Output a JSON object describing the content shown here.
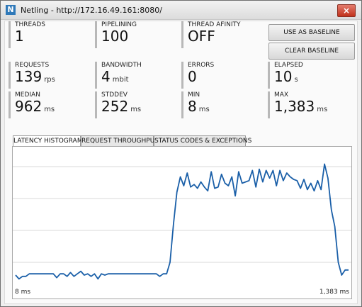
{
  "window": {
    "app_icon_letter": "N",
    "title": "Netling - http://172.16.49.161:8080/",
    "close_glyph": "×"
  },
  "stats": {
    "threads": {
      "label": "Threads",
      "value": "1",
      "unit": ""
    },
    "pipelining": {
      "label": "Pipelining",
      "value": "100",
      "unit": ""
    },
    "thread_affinity": {
      "label": "Thread Afinity",
      "value": "OFF",
      "unit": ""
    },
    "requests": {
      "label": "Requests",
      "value": "139",
      "unit": "rps"
    },
    "bandwidth": {
      "label": "Bandwidth",
      "value": "4",
      "unit": "mbit"
    },
    "errors": {
      "label": "Errors",
      "value": "0",
      "unit": ""
    },
    "elapsed": {
      "label": "Elapsed",
      "value": "10",
      "unit": "s"
    },
    "median": {
      "label": "Median",
      "value": "962",
      "unit": "ms"
    },
    "stddev": {
      "label": "Stddev",
      "value": "252",
      "unit": "ms"
    },
    "min": {
      "label": "Min",
      "value": "8",
      "unit": "ms"
    },
    "max": {
      "label": "Max",
      "value": "1,383",
      "unit": "ms"
    }
  },
  "buttons": {
    "use_baseline": "Use as baseline",
    "clear_baseline": "Clear baseline"
  },
  "tabs": [
    {
      "label": "Latency Histogram",
      "active": true
    },
    {
      "label": "Request Throughput",
      "active": false
    },
    {
      "label": "Status Codes & Exceptions",
      "active": false
    }
  ],
  "chart": {
    "x_min_label": "8 ms",
    "x_max_label": "1,383 ms",
    "line_color": "#1a5fa8",
    "gridline_count": 4
  },
  "chart_data": {
    "type": "line",
    "x_range": [
      "8 ms",
      "1,383 ms"
    ],
    "ylim": [
      0,
      100
    ],
    "grid": true,
    "series": [
      {
        "values": [
          5,
          2,
          4,
          4,
          6,
          6,
          6,
          6,
          6,
          6,
          6,
          6,
          3,
          6,
          6,
          4,
          7,
          4,
          6,
          8,
          5,
          6,
          4,
          6,
          2,
          6,
          5,
          6,
          6,
          6,
          6,
          6,
          6,
          6,
          6,
          6,
          6,
          6,
          6,
          6,
          6,
          6,
          4,
          6,
          6,
          15,
          45,
          70,
          82,
          75,
          85,
          74,
          76,
          73,
          78,
          74,
          71,
          86,
          73,
          74,
          84,
          77,
          75,
          82,
          67,
          86,
          77,
          78,
          79,
          87,
          74,
          88,
          78,
          87,
          81,
          87,
          75,
          87,
          79,
          85,
          82,
          80,
          79,
          73,
          80,
          72,
          77,
          71,
          79,
          72,
          92,
          81,
          56,
          43,
          15,
          5,
          9,
          9
        ]
      }
    ]
  }
}
